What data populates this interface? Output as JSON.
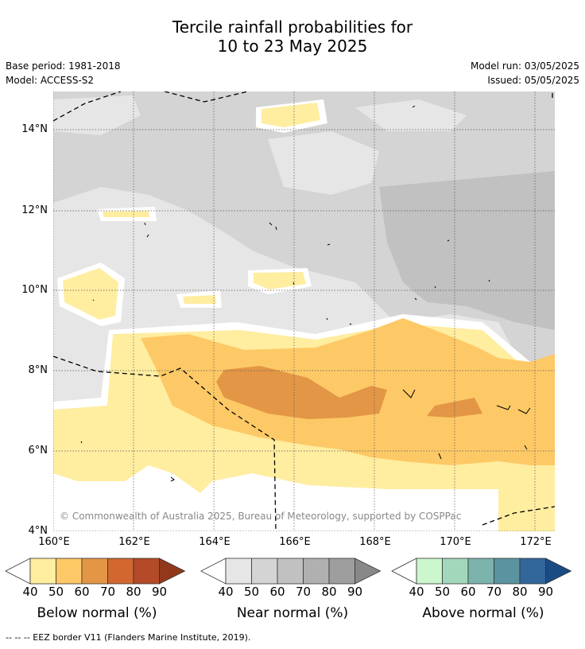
{
  "title_line1": "Tercile rainfall probabilities for",
  "title_line2": "10 to 23 May 2025",
  "meta": {
    "base_period": "Base period: 1981-2018",
    "model": "Model: ACCESS-S2",
    "model_run": "Model run: 03/05/2025",
    "issued": "Issued: 05/05/2025"
  },
  "map": {
    "lat_ticks": [
      "14°N",
      "12°N",
      "10°N",
      "8°N",
      "6°N",
      "4°N"
    ],
    "lon_ticks": [
      "160°E",
      "162°E",
      "164°E",
      "166°E",
      "168°E",
      "170°E",
      "172°E"
    ],
    "copyright": "© Commonwealth of Australia 2025, Bureau of Meteorology, supported by COSPPac"
  },
  "legends": [
    {
      "title": "Below normal (%)",
      "ticks": [
        "40",
        "50",
        "60",
        "70",
        "80",
        "90"
      ],
      "colors": [
        "#ffeda0",
        "#fdc966",
        "#e39646",
        "#d2672f",
        "#b44a27",
        "#92391c"
      ]
    },
    {
      "title": "Near normal (%)",
      "ticks": [
        "40",
        "50",
        "60",
        "70",
        "80",
        "90"
      ],
      "colors": [
        "#e6e6e6",
        "#d4d4d4",
        "#c1c1c1",
        "#b0b0b0",
        "#9e9e9e",
        "#888888"
      ]
    },
    {
      "title": "Above normal (%)",
      "ticks": [
        "40",
        "50",
        "60",
        "70",
        "80",
        "90"
      ],
      "colors": [
        "#ccf6cd",
        "#a3d7bc",
        "#7cb4ad",
        "#5b93a0",
        "#31679a",
        "#1b4b85"
      ]
    }
  ],
  "footnote": "--  --  -- EEZ border V11 (Flanders Marine Institute, 2019)."
}
